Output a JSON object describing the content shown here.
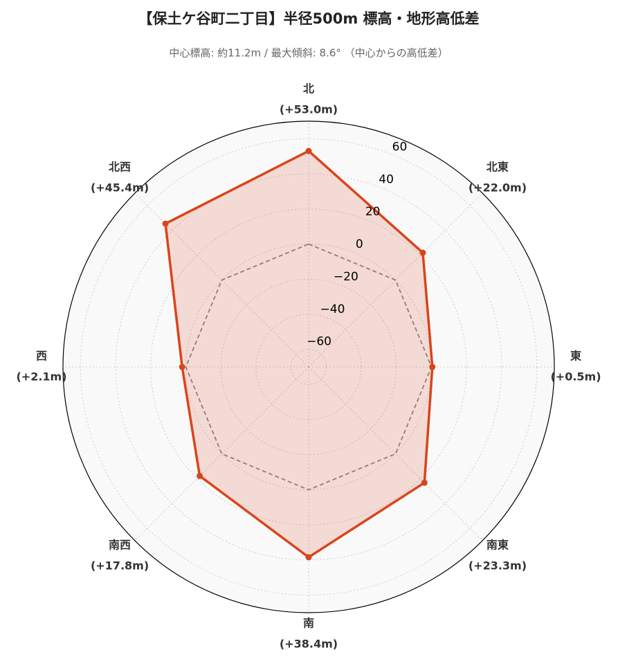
{
  "chart_data": {
    "type": "radar",
    "title": "【保土ケ谷町二丁目】半径500m 標高・地形高低差",
    "subtitle": "中心標高: 約11.2m / 最大傾斜: 8.6° （中心からの高低差）",
    "categories": [
      "北",
      "北東",
      "東",
      "南東",
      "南",
      "南西",
      "西",
      "北西"
    ],
    "series": [
      {
        "values": [
          53.0,
          22.0,
          0.5,
          23.3,
          38.4,
          17.8,
          2.1,
          45.4
        ],
        "value_labels": [
          "(+53.0m)",
          "(+22.0m)",
          "(+0.5m)",
          "(+23.3m)",
          "(+38.4m)",
          "(+17.8m)",
          "(+2.1m)",
          "(+45.4m)"
        ],
        "color": "#d9441c"
      }
    ],
    "baseline": 0,
    "ylim": [
      -70,
      70
    ],
    "yticks": [
      {
        "value": -60,
        "label": "−60"
      },
      {
        "value": -40,
        "label": "−40"
      },
      {
        "value": -20,
        "label": "−20"
      },
      0,
      20,
      40,
      60
    ],
    "grid": true
  }
}
